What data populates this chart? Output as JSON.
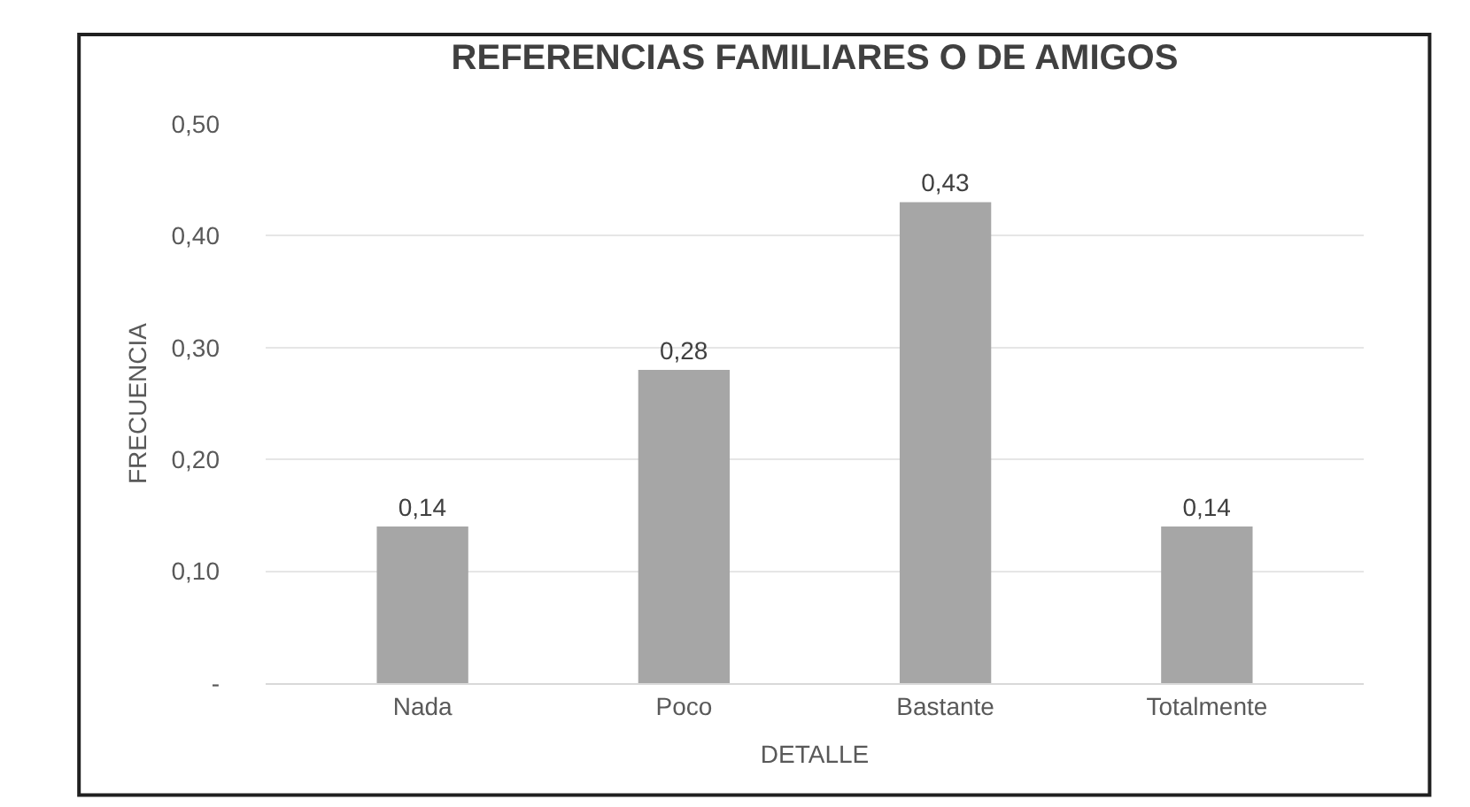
{
  "chart_data": {
    "type": "bar",
    "title": "REFERENCIAS FAMILIARES O DE AMIGOS",
    "xlabel": "DETALLE",
    "ylabel": "FRECUENCIA",
    "categories": [
      "Nada",
      "Poco",
      "Bastante",
      "Totalmente"
    ],
    "values": [
      0.14,
      0.28,
      0.43,
      0.14
    ],
    "value_labels": [
      "0,14",
      "0,28",
      "0,43",
      "0,14"
    ],
    "color": "#a6a6a6",
    "ylim": [
      0,
      0.5
    ],
    "yticks": [
      {
        "value": 0,
        "label": "-"
      },
      {
        "value": 0.1,
        "label": "0,10"
      },
      {
        "value": 0.2,
        "label": "0,20"
      },
      {
        "value": 0.3,
        "label": "0,30"
      },
      {
        "value": 0.4,
        "label": "0,40"
      },
      {
        "value": 0.5,
        "label": "0,50"
      }
    ],
    "grid": "y",
    "legend": false
  }
}
